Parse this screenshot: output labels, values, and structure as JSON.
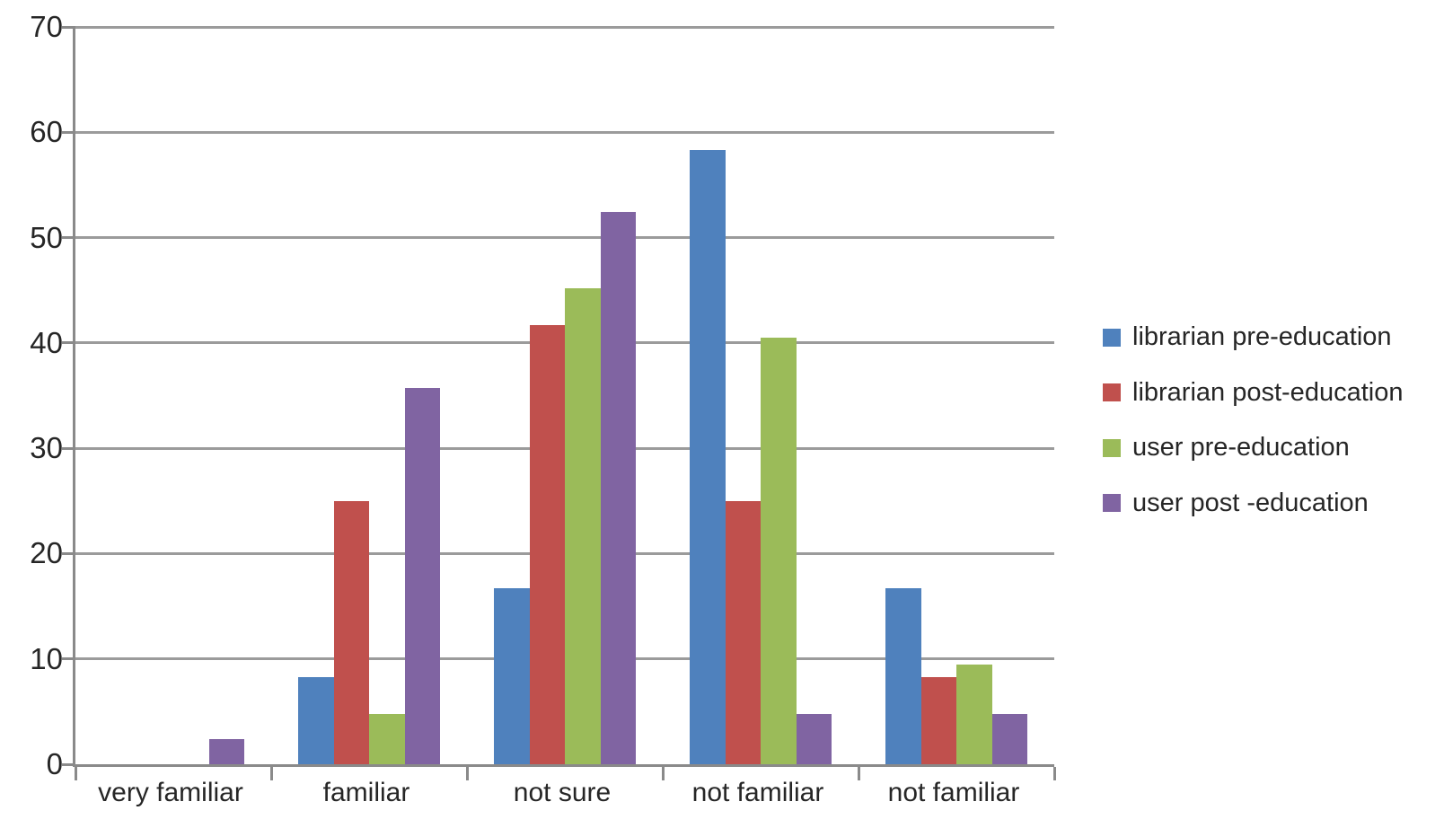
{
  "chart_data": {
    "type": "bar",
    "title": "",
    "xlabel": "",
    "ylabel": "",
    "categories": [
      "very familiar",
      "familiar",
      "not sure",
      "not familiar",
      "not familiar"
    ],
    "series": [
      {
        "name": "librarian pre-education",
        "color": "#4F81BD",
        "values": [
          0,
          8.3,
          16.7,
          58.3,
          16.7
        ]
      },
      {
        "name": "librarian post-education",
        "color": "#C0504D",
        "values": [
          0,
          25,
          41.7,
          25,
          8.3
        ]
      },
      {
        "name": "user pre-education",
        "color": "#9BBB59",
        "values": [
          0,
          4.8,
          45.2,
          40.5,
          9.5
        ]
      },
      {
        "name": "user post -education",
        "color": "#8064A2",
        "values": [
          2.4,
          35.7,
          52.4,
          4.8,
          4.8
        ]
      }
    ],
    "ylim": [
      0,
      70
    ],
    "ytick_step": 10,
    "y_tick_labels": [
      "0",
      "10",
      "20",
      "30",
      "40",
      "50",
      "60",
      "70"
    ],
    "grid": true,
    "legend_position": "right"
  },
  "colors": {
    "gridline": "#9B9B9B",
    "axis": "#8A8A8A",
    "text": "#262626",
    "background": "#FFFFFF"
  }
}
